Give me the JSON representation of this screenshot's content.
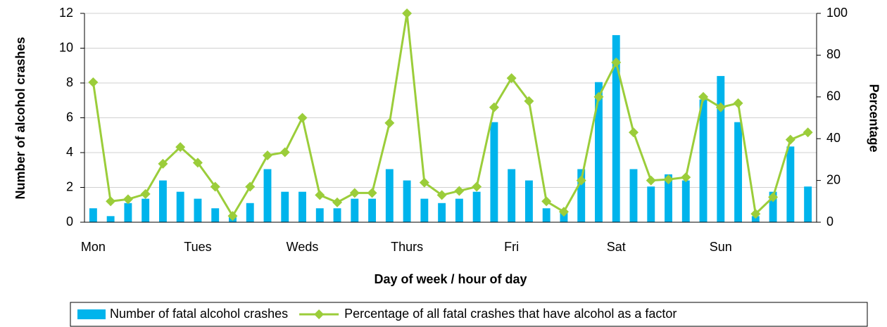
{
  "chart_data": {
    "type": "bar_line",
    "xlabel": "Day of week / hour of day",
    "ylabel": "Number of alcohol crashes",
    "y2label": "Percentage",
    "categories": [
      "Mon",
      null,
      null,
      null,
      null,
      null,
      "Tues",
      null,
      null,
      null,
      null,
      null,
      "Weds",
      null,
      null,
      null,
      null,
      null,
      "Thurs",
      null,
      null,
      null,
      null,
      null,
      "Fri",
      null,
      null,
      null,
      null,
      null,
      "Sat",
      null,
      null,
      null,
      null,
      null,
      "Sun",
      null,
      null,
      null,
      null,
      null
    ],
    "series": [
      {
        "name": "Number of fatal alcohol crashes",
        "type": "bar",
        "color": "#00b4ec",
        "values": [
          0.8,
          0.35,
          1.1,
          1.35,
          2.4,
          1.75,
          1.35,
          0.8,
          0.4,
          1.1,
          3.05,
          1.75,
          1.75,
          0.8,
          0.8,
          1.35,
          1.35,
          3.05,
          2.4,
          1.35,
          1.1,
          1.35,
          1.75,
          5.75,
          3.05,
          2.4,
          0.8,
          0.6,
          3.05,
          8.05,
          10.75,
          3.05,
          2.05,
          2.75,
          2.4,
          7.05,
          8.4,
          5.75,
          0.35,
          1.75,
          4.35,
          2.05
        ]
      },
      {
        "name": "Percentage of all fatal crashes that have alcohol as a factor",
        "type": "line",
        "axis": "y2",
        "color": "#9bcd3a",
        "values": [
          67,
          10,
          11,
          13.5,
          28,
          36,
          28.5,
          17,
          3,
          17,
          32,
          33.5,
          50,
          13,
          9.5,
          14,
          14,
          47.5,
          100,
          19,
          13,
          15,
          17,
          55,
          69,
          58,
          10,
          5,
          20,
          60,
          76.5,
          43,
          20,
          20.5,
          21.5,
          60,
          55,
          57,
          4,
          12,
          39.5,
          43
        ]
      }
    ],
    "ylim": [
      0,
      12
    ],
    "yticks": [
      0,
      2,
      4,
      6,
      8,
      10,
      12
    ],
    "y2lim": [
      0,
      100
    ],
    "y2ticks": [
      0,
      20,
      40,
      60,
      80,
      100
    ],
    "grid": true,
    "legend": "bottom"
  }
}
